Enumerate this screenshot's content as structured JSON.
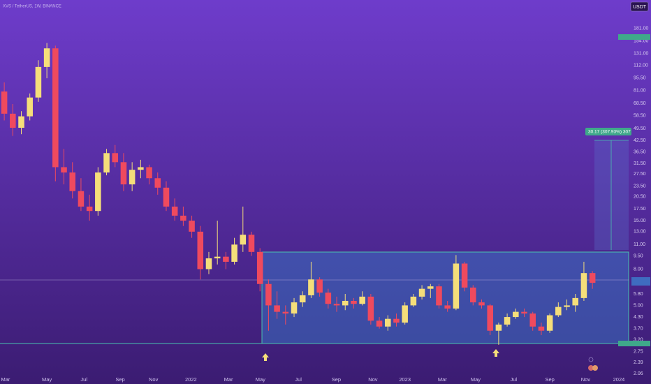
{
  "chart_data": {
    "type": "candlestick",
    "title": "XVS / TetherUS, 1W, BINANCE",
    "currency": "USDT",
    "log_scale": true,
    "grid": false,
    "up_color": "#f5de7a",
    "down_color": "#ef4a5e",
    "position_label": "30.17 (307.93%) 307",
    "xlim": [
      0,
      73.75
    ],
    "xticks": [
      {
        "value": 0.65,
        "label": "Mar"
      },
      {
        "value": 5.5,
        "label": "May"
      },
      {
        "value": 9.85,
        "label": "Jul"
      },
      {
        "value": 14.1,
        "label": "Sep"
      },
      {
        "value": 18,
        "label": "Nov"
      },
      {
        "value": 22.4,
        "label": "2022"
      },
      {
        "value": 26.8,
        "label": "Mar"
      },
      {
        "value": 30.55,
        "label": "May"
      },
      {
        "value": 35,
        "label": "Jul"
      },
      {
        "value": 39.45,
        "label": "Sep"
      },
      {
        "value": 43.75,
        "label": "Nov"
      },
      {
        "value": 47.5,
        "label": "2023"
      },
      {
        "value": 51.9,
        "label": "Mar"
      },
      {
        "value": 55.8,
        "label": "May"
      },
      {
        "value": 60.25,
        "label": "Jul"
      },
      {
        "value": 64.5,
        "label": "Sep"
      },
      {
        "value": 68.7,
        "label": "Nov"
      },
      {
        "value": 72.6,
        "label": "2024"
      }
    ],
    "ylim": [
      2.03,
      262
    ],
    "yticks": [
      2.06,
      2.39,
      2.75,
      {
        "value": 3.2,
        "label": "3.20"
      },
      {
        "value": 3.7,
        "label": "3.70"
      },
      {
        "value": 4.3,
        "label": "4.30"
      },
      {
        "value": 5,
        "label": "5.00"
      },
      {
        "value": 5.8,
        "label": "5.80"
      },
      {
        "value": 6.8,
        "label": "6.80"
      },
      {
        "value": 8,
        "label": "8.00"
      },
      {
        "value": 9.5,
        "label": "9.50"
      },
      {
        "value": 11,
        "label": "11.00"
      },
      {
        "value": 13,
        "label": "13.00"
      },
      {
        "value": 15,
        "label": "15.00"
      },
      {
        "value": 17.5,
        "label": "17.50"
      },
      {
        "value": 20.5,
        "label": "20.50"
      },
      {
        "value": 23.5,
        "label": "23.50"
      },
      {
        "value": 27.5,
        "label": "27.50"
      },
      {
        "value": 31.5,
        "label": "31.50"
      },
      {
        "value": 36.5,
        "label": "36.50"
      },
      {
        "value": 42.5,
        "label": "42.50"
      },
      {
        "value": 49.5,
        "label": "49.50"
      },
      {
        "value": 58.5,
        "label": "58.50"
      },
      {
        "value": 68.5,
        "label": "68.50"
      },
      {
        "value": 81,
        "label": "81.00"
      },
      {
        "value": 95.5,
        "label": "95.50"
      },
      {
        "value": 112,
        "label": "112.00"
      },
      {
        "value": 131,
        "label": "131.00"
      },
      {
        "value": 154,
        "label": "154.00"
      },
      {
        "value": 181,
        "label": "181.00"
      }
    ],
    "candles": [
      [
        80,
        90,
        55,
        60
      ],
      [
        60,
        68,
        45,
        50
      ],
      [
        50,
        62,
        46,
        58
      ],
      [
        58,
        78,
        55,
        74
      ],
      [
        74,
        120,
        70,
        110
      ],
      [
        110,
        150,
        95,
        140
      ],
      [
        140,
        145,
        25,
        30
      ],
      [
        30,
        38,
        24,
        28
      ],
      [
        28,
        32,
        20,
        22
      ],
      [
        22,
        26,
        17,
        18
      ],
      [
        18,
        21,
        15,
        17
      ],
      [
        17,
        30,
        16,
        28
      ],
      [
        28,
        38,
        27,
        36
      ],
      [
        36,
        40,
        30,
        32
      ],
      [
        32,
        36,
        22,
        24
      ],
      [
        24,
        32,
        22,
        29
      ],
      [
        29,
        33,
        26,
        30
      ],
      [
        30,
        31,
        24,
        26
      ],
      [
        26,
        28,
        21,
        23
      ],
      [
        23,
        25,
        17,
        18
      ],
      [
        18,
        20,
        15,
        16
      ],
      [
        16,
        18,
        14,
        15
      ],
      [
        15,
        16,
        12,
        13
      ],
      [
        13,
        14,
        7,
        8
      ],
      [
        8,
        10,
        7.5,
        9.2
      ],
      [
        9.2,
        15,
        8.5,
        9.4
      ],
      [
        9.4,
        10,
        8,
        8.8
      ],
      [
        8.8,
        12,
        8.5,
        11
      ],
      [
        11,
        18,
        10,
        12.5
      ],
      [
        12.5,
        13,
        9.5,
        10
      ],
      [
        10,
        10.5,
        6,
        6.6
      ],
      [
        6.6,
        7,
        3.6,
        5.0
      ],
      [
        5.0,
        6,
        4.2,
        4.6
      ],
      [
        4.6,
        5,
        3.9,
        4.5
      ],
      [
        4.5,
        5.5,
        4.3,
        5.2
      ],
      [
        5.2,
        6,
        4.9,
        5.7
      ],
      [
        5.7,
        8.8,
        5.5,
        7.0
      ],
      [
        7.0,
        7.2,
        5.6,
        5.9
      ],
      [
        5.9,
        6.2,
        4.8,
        5.1
      ],
      [
        5.1,
        5.6,
        4.6,
        5.0
      ],
      [
        5.0,
        5.8,
        4.7,
        5.3
      ],
      [
        5.3,
        5.5,
        4.8,
        5.1
      ],
      [
        5.1,
        6,
        5,
        5.6
      ],
      [
        5.6,
        5.8,
        3.9,
        4.1
      ],
      [
        4.1,
        4.3,
        3.7,
        3.8
      ],
      [
        3.8,
        4.4,
        3.6,
        4.2
      ],
      [
        4.2,
        4.5,
        3.8,
        4.0
      ],
      [
        4.0,
        5.2,
        3.9,
        5.0
      ],
      [
        5.0,
        5.8,
        4.9,
        5.6
      ],
      [
        5.6,
        6.5,
        5.4,
        6.2
      ],
      [
        6.2,
        6.6,
        5.5,
        6.4
      ],
      [
        6.4,
        6.6,
        4.8,
        5.0
      ],
      [
        5.0,
        5.3,
        4.6,
        4.8
      ],
      [
        4.8,
        9.6,
        4.7,
        8.6
      ],
      [
        8.6,
        8.8,
        6.0,
        6.3
      ],
      [
        6.3,
        6.5,
        5.0,
        5.2
      ],
      [
        5.2,
        5.4,
        4.8,
        5.0
      ],
      [
        5.0,
        5.1,
        3.4,
        3.6
      ],
      [
        3.6,
        4.0,
        3.0,
        3.9
      ],
      [
        3.9,
        4.5,
        3.8,
        4.3
      ],
      [
        4.3,
        4.8,
        4.2,
        4.6
      ],
      [
        4.6,
        4.8,
        4.3,
        4.5
      ],
      [
        4.5,
        4.6,
        3.6,
        3.8
      ],
      [
        3.8,
        4.0,
        3.4,
        3.6
      ],
      [
        3.6,
        4.5,
        3.5,
        4.4
      ],
      [
        4.4,
        5.2,
        4.3,
        4.9
      ],
      [
        4.9,
        5.4,
        4.7,
        5.0
      ],
      [
        5.0,
        5.8,
        4.6,
        5.5
      ],
      [
        5.5,
        8.8,
        5.3,
        7.6
      ],
      [
        7.6,
        7.8,
        6.2,
        6.7
      ]
    ]
  }
}
